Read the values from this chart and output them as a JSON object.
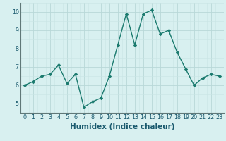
{
  "x": [
    0,
    1,
    2,
    3,
    4,
    5,
    6,
    7,
    8,
    9,
    10,
    11,
    12,
    13,
    14,
    15,
    16,
    17,
    18,
    19,
    20,
    21,
    22,
    23
  ],
  "y": [
    6.0,
    6.2,
    6.5,
    6.6,
    7.1,
    6.1,
    6.6,
    4.8,
    5.1,
    5.3,
    6.5,
    8.2,
    9.9,
    8.2,
    9.9,
    10.1,
    8.8,
    9.0,
    7.8,
    6.9,
    6.0,
    6.4,
    6.6,
    6.5
  ],
  "line_color": "#1a7a6e",
  "marker": "D",
  "markersize": 2.2,
  "linewidth": 1.0,
  "xlabel": "Humidex (Indice chaleur)",
  "xlim": [
    -0.5,
    23.5
  ],
  "ylim": [
    4.5,
    10.5
  ],
  "yticks": [
    5,
    6,
    7,
    8,
    9,
    10
  ],
  "xticks": [
    0,
    1,
    2,
    3,
    4,
    5,
    6,
    7,
    8,
    9,
    10,
    11,
    12,
    13,
    14,
    15,
    16,
    17,
    18,
    19,
    20,
    21,
    22,
    23
  ],
  "bg_color": "#d8f0f0",
  "grid_color_major": "#b8d8d8",
  "grid_color_minor": "#c8e4e4",
  "tick_fontsize": 5.8,
  "xlabel_fontsize": 7.5
}
